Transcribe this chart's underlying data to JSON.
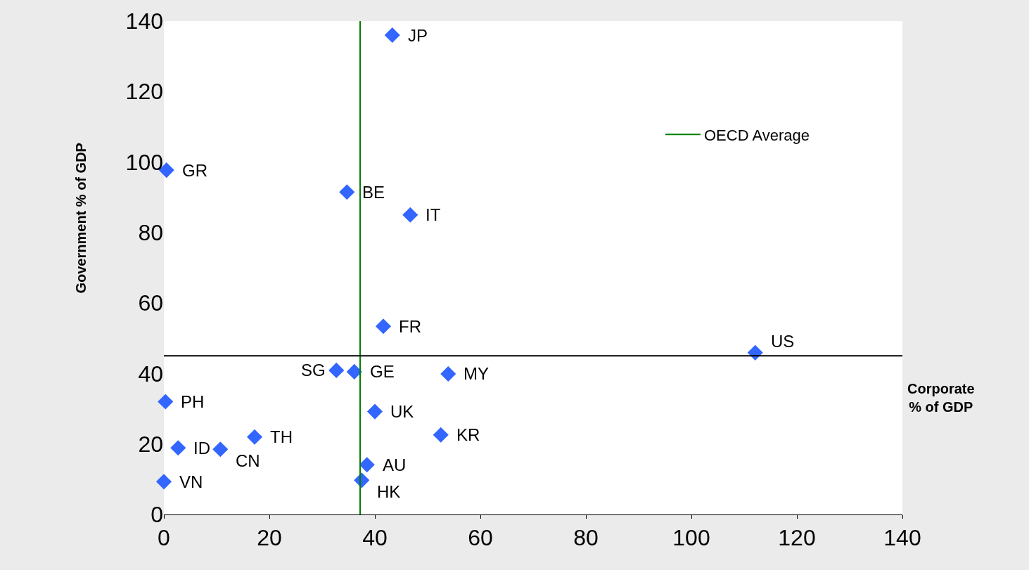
{
  "chart_data": {
    "type": "scatter",
    "xlabel": "Corporate % of GDP",
    "ylabel": "Government % of GDP",
    "x": [
      43.3,
      0.5,
      34.7,
      46.7,
      41.6,
      112.1,
      32.7,
      36.1,
      53.9,
      0.3,
      40,
      52.5,
      17.2,
      2.7,
      10.7,
      38.5,
      37.5,
      0
    ],
    "series": [
      {
        "color": "#3366ff",
        "values": [
          136,
          97.7,
          91.5,
          85,
          53.4,
          45.9,
          40.9,
          40.5,
          39.9,
          32,
          29.2,
          22.6,
          22,
          18.9,
          18.5,
          14.1,
          9.7,
          9.3
        ]
      },
      {
        "name": "OECD Average",
        "type": "line",
        "marker": "none",
        "color": "#008000",
        "x": [
          37.2,
          37.2
        ],
        "values": [
          0,
          140
        ]
      }
    ],
    "annotations": [
      {
        "text": "JP",
        "x": 43.3,
        "y": 136
      },
      {
        "text": "GR",
        "x": 0.5,
        "y": 97.7
      },
      {
        "text": "BE",
        "x": 34.7,
        "y": 91.5
      },
      {
        "text": "IT",
        "x": 46.7,
        "y": 85
      },
      {
        "text": "FR",
        "x": 41.6,
        "y": 53.4
      },
      {
        "text": "US",
        "x": 112.1,
        "y": 45.9
      },
      {
        "text": "SG",
        "x": 32.7,
        "y": 40.9
      },
      {
        "text": "GE",
        "x": 36.1,
        "y": 40.5
      },
      {
        "text": "MY",
        "x": 53.9,
        "y": 39.9
      },
      {
        "text": "PH",
        "x": 0.3,
        "y": 32
      },
      {
        "text": "UK",
        "x": 40,
        "y": 29.2
      },
      {
        "text": "KR",
        "x": 52.5,
        "y": 22.6
      },
      {
        "text": "TH",
        "x": 17.2,
        "y": 22
      },
      {
        "text": "ID",
        "x": 2.7,
        "y": 18.9
      },
      {
        "text": "CN",
        "x": 10.7,
        "y": 18.5
      },
      {
        "text": "AU",
        "x": 38.5,
        "y": 14.1
      },
      {
        "text": "HK",
        "x": 37.5,
        "y": 9.7
      },
      {
        "text": "VN",
        "x": 0,
        "y": 9.3
      }
    ],
    "ref_lines": [
      {
        "axis": "y",
        "value": 45,
        "color": "#000000"
      }
    ],
    "xlim": [
      0,
      140
    ],
    "xticks": [
      0,
      20,
      40,
      60,
      80,
      100,
      120,
      140
    ],
    "ylim": [
      0,
      140
    ],
    "yticks": [
      0,
      20,
      40,
      60,
      80,
      100,
      120,
      140
    ],
    "legend": "top right",
    "marker": "diamond"
  }
}
